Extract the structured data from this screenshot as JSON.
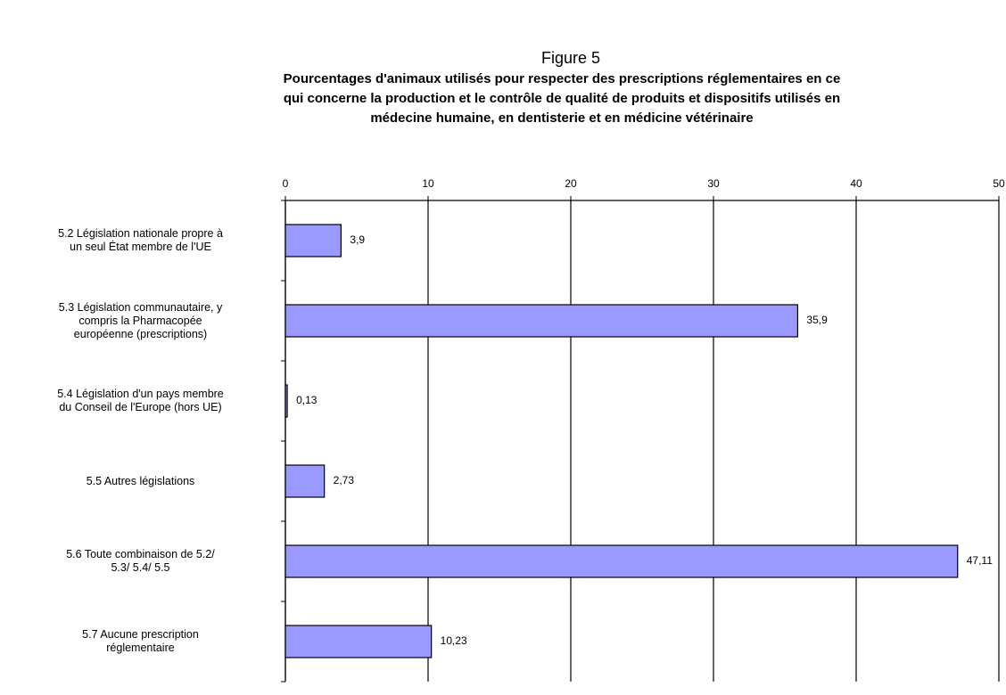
{
  "chart_data": {
    "type": "bar",
    "orientation": "horizontal",
    "title": "Figure 5",
    "subtitle": "Pourcentages d'animaux utilisés pour respecter des prescriptions réglementaires en ce\nqui concerne la production et le contrôle de qualité de produits et dispositifs utilisés en\nmédecine humaine, en dentisterie et en médicine vétérinaire",
    "categories": [
      "5.2     Législation nationale propre à\nun seul  État membre de l'UE",
      "5.3     Législation communautaire, y\ncompris la  Pharmacopée\neuropéenne (prescriptions)",
      "5.4     Législation d'un pays membre\ndu Conseil de l'Europe  (hors UE)",
      "5.5     Autres législations",
      "5.6        Toute combinaison de 5.2/\n5.3/ 5.4/ 5.5",
      "5.7        Aucune prescription\nréglementaire"
    ],
    "values": [
      3.9,
      35.9,
      0.13,
      2.73,
      47.11,
      10.23
    ],
    "value_labels": [
      "3,9",
      "35,9",
      "0,13",
      "2,73",
      "47,11",
      "10,23"
    ],
    "color": "#9999ff",
    "xlim": [
      0,
      50
    ],
    "xticks": [
      0,
      10,
      20,
      30,
      40,
      50
    ],
    "grid": true
  }
}
